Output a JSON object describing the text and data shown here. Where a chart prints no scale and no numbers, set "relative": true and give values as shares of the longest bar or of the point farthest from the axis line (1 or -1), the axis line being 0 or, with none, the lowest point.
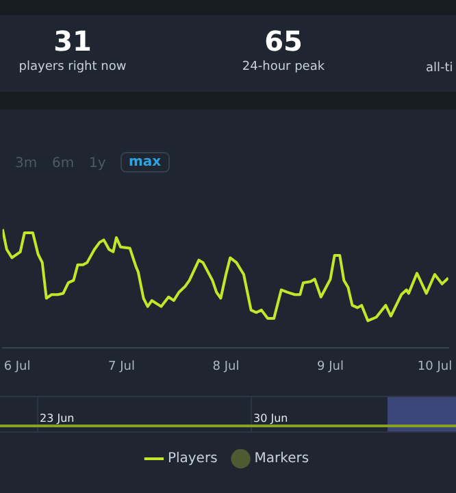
{
  "chart_data": {
    "type": "line",
    "relative": true,
    "annotations": [
      "31",
      "players right now",
      "65",
      "24-hour peak",
      "all-ti",
      "3m",
      "6m",
      "1y",
      "max",
      "23 Jun",
      "30 Jun"
    ],
    "xlim": [
      "--07-05T20:38",
      "--07-10T03:07"
    ],
    "xticks": [
      {
        "value": "--07-06",
        "label": "6 Jul"
      },
      {
        "value": "--07-07",
        "label": "7 Jul"
      },
      {
        "value": "--07-08",
        "label": "8 Jul"
      },
      {
        "value": "--07-09",
        "label": "9 Jul"
      },
      {
        "value": "--07-10",
        "label": "10 Jul"
      }
    ],
    "legend": "bottom",
    "tick_labels": "x",
    "marker": "none",
    "series": [
      {
        "name": "Players",
        "color": "#c2e62a",
        "x": [
          "--07-05T20:38",
          "--07-05T21:36",
          "--07-05T22:48",
          "--07-06T00:43",
          "--07-06T01:41",
          "--07-06T03:36",
          "--07-06T04:48",
          "--07-06T05:46",
          "--07-06T06:43",
          "--07-06T07:55",
          "--07-06T09:22",
          "--07-06T10:34",
          "--07-06T11:46",
          "--07-06T12:58",
          "--07-06T13:55",
          "--07-06T15:07",
          "--07-06T16:05",
          "--07-06T17:46",
          "--07-06T18:58",
          "--07-06T19:55",
          "--07-06T21:07",
          "--07-06T22:05",
          "--07-06T22:48",
          "--07-06T23:46",
          "--07-07T01:55",
          "--07-07T03:22",
          "--07-07T03:50",
          "--07-07T05:02",
          "--07-07T06:00",
          "--07-07T06:58",
          "--07-07T09:07",
          "--07-07T10:48",
          "--07-07T12:00",
          "--07-07T13:12",
          "--07-07T14:38",
          "--07-07T15:36",
          "--07-07T17:46",
          "--07-07T18:43",
          "--07-07T20:53",
          "--07-07T21:50",
          "--07-07T22:48",
          "--07-08T00:00",
          "--07-08T00:58",
          "--07-08T02:24",
          "--07-08T04:05",
          "--07-08T05:46",
          "--07-08T06:58",
          "--07-08T08:10",
          "--07-08T09:36",
          "--07-08T11:02",
          "--07-08T12:43",
          "--07-08T14:10",
          "--07-08T15:50",
          "--07-08T17:02",
          "--07-08T17:46",
          "--07-08T19:26",
          "--07-08T20:24",
          "--07-08T21:50",
          "--07-09T00:00",
          "--07-09T00:58",
          "--07-09T02:10",
          "--07-09T03:07",
          "--07-09T04:05",
          "--07-09T05:02",
          "--07-09T06:14",
          "--07-09T07:12",
          "--07-09T08:38",
          "--07-09T10:34",
          "--07-09T12:43",
          "--07-09T13:55",
          "--07-09T16:19",
          "--07-09T17:31",
          "--07-09T18:00",
          "--07-09T19:55",
          "--07-09T22:05",
          "--07-10T00:00",
          "--07-10T01:41",
          "--07-10T03:07"
        ],
        "values": [
          1.0,
          0.83,
          0.76,
          0.81,
          0.97,
          0.97,
          0.79,
          0.72,
          0.42,
          0.45,
          0.45,
          0.46,
          0.55,
          0.57,
          0.7,
          0.7,
          0.72,
          0.83,
          0.89,
          0.91,
          0.83,
          0.81,
          0.93,
          0.85,
          0.84,
          0.68,
          0.64,
          0.42,
          0.35,
          0.4,
          0.35,
          0.43,
          0.4,
          0.47,
          0.52,
          0.57,
          0.74,
          0.72,
          0.57,
          0.47,
          0.42,
          0.62,
          0.76,
          0.72,
          0.62,
          0.32,
          0.3,
          0.32,
          0.25,
          0.25,
          0.49,
          0.47,
          0.45,
          0.45,
          0.55,
          0.56,
          0.58,
          0.43,
          0.58,
          0.78,
          0.78,
          0.57,
          0.51,
          0.36,
          0.34,
          0.36,
          0.23,
          0.26,
          0.36,
          0.27,
          0.45,
          0.49,
          0.46,
          0.63,
          0.46,
          0.62,
          0.54,
          0.59
        ]
      },
      {
        "name": "Markers",
        "type": "scatter",
        "color": "#4f5a33"
      }
    ]
  }
}
